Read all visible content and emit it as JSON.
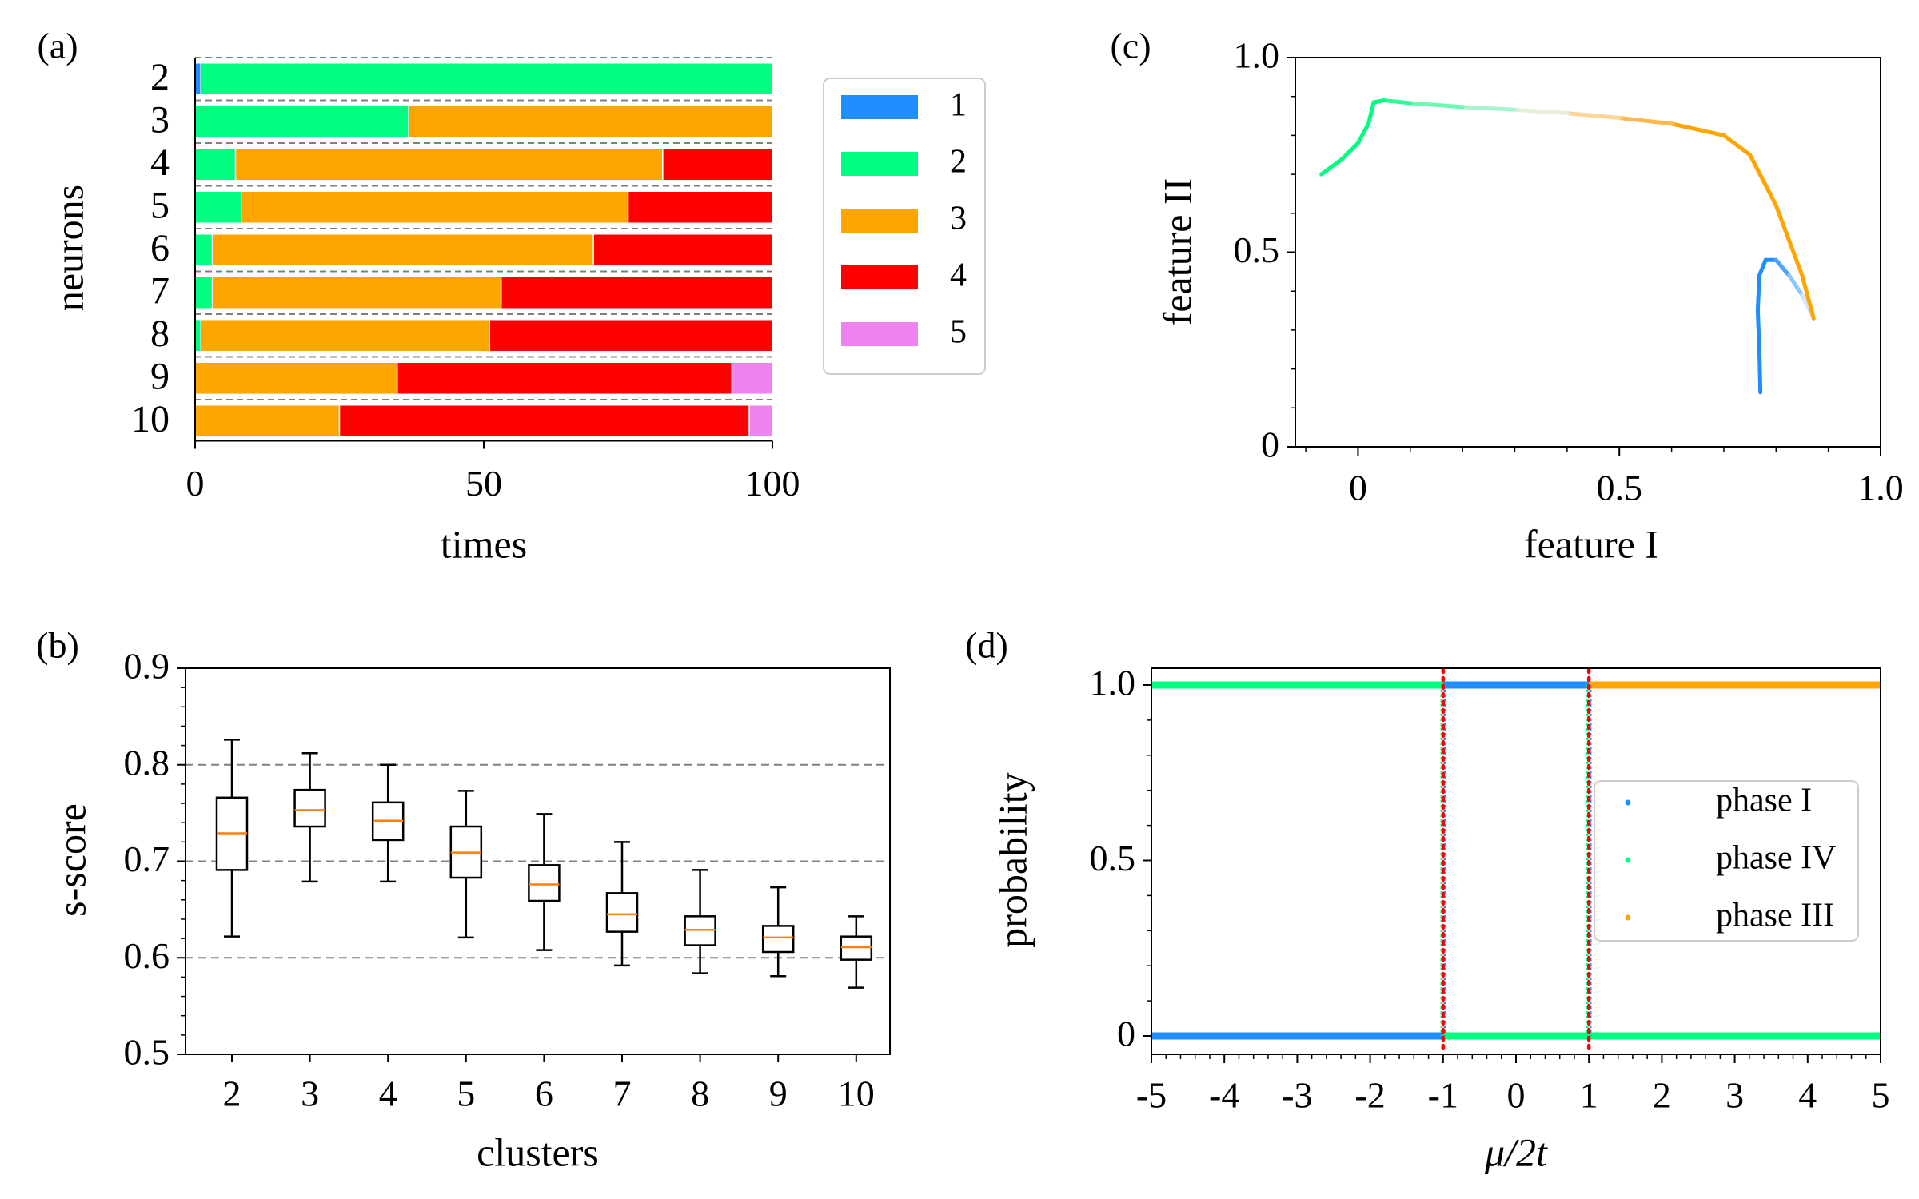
{
  "chart_data": [
    {
      "panel": "(a)",
      "type": "bar",
      "orientation": "horizontal-stacked",
      "xlabel": "times",
      "ylabel": "neurons",
      "xlim": [
        0,
        100
      ],
      "xticks": [
        0,
        50,
        100
      ],
      "categories": [
        "2",
        "3",
        "4",
        "5",
        "6",
        "7",
        "8",
        "9",
        "10"
      ],
      "series": [
        {
          "name": "1",
          "color": "#1f8fff",
          "values": [
            1,
            0,
            0,
            0,
            0,
            0,
            0,
            0,
            0
          ]
        },
        {
          "name": "2",
          "color": "#00ff80",
          "values": [
            99,
            37,
            7,
            8,
            3,
            3,
            1,
            0,
            0
          ]
        },
        {
          "name": "3",
          "color": "#ffa500",
          "values": [
            0,
            63,
            74,
            67,
            66,
            50,
            50,
            35,
            25
          ]
        },
        {
          "name": "4",
          "color": "#ff0000",
          "values": [
            0,
            0,
            19,
            25,
            31,
            47,
            49,
            58,
            71
          ]
        },
        {
          "name": "5",
          "color": "#ee82ee",
          "values": [
            0,
            0,
            0,
            0,
            0,
            0,
            0,
            7,
            4
          ]
        }
      ],
      "legend": "right"
    },
    {
      "panel": "(b)",
      "type": "box",
      "xlabel": "clusters",
      "ylabel": "s-score",
      "ylim": [
        0.5,
        0.9
      ],
      "yticks": [
        "0.5",
        "0.6",
        "0.7",
        "0.8",
        "0.9"
      ],
      "grid_lines": [
        0.6,
        0.7,
        0.8
      ],
      "categories": [
        "2",
        "3",
        "4",
        "5",
        "6",
        "7",
        "8",
        "9",
        "10"
      ],
      "boxes": [
        {
          "whislo": 0.622,
          "q1": 0.691,
          "med": 0.729,
          "q3": 0.766,
          "whishi": 0.826
        },
        {
          "whislo": 0.679,
          "q1": 0.736,
          "med": 0.753,
          "q3": 0.774,
          "whishi": 0.812
        },
        {
          "whislo": 0.679,
          "q1": 0.722,
          "med": 0.742,
          "q3": 0.761,
          "whishi": 0.8
        },
        {
          "whislo": 0.621,
          "q1": 0.683,
          "med": 0.709,
          "q3": 0.736,
          "whishi": 0.773
        },
        {
          "whislo": 0.608,
          "q1": 0.659,
          "med": 0.676,
          "q3": 0.696,
          "whishi": 0.749
        },
        {
          "whislo": 0.592,
          "q1": 0.627,
          "med": 0.645,
          "q3": 0.667,
          "whishi": 0.72
        },
        {
          "whislo": 0.584,
          "q1": 0.613,
          "med": 0.629,
          "q3": 0.643,
          "whishi": 0.691
        },
        {
          "whislo": 0.581,
          "q1": 0.606,
          "med": 0.621,
          "q3": 0.633,
          "whishi": 0.673
        },
        {
          "whislo": 0.569,
          "q1": 0.598,
          "med": 0.611,
          "q3": 0.622,
          "whishi": 0.643
        }
      ],
      "median_color": "#ff7f0e"
    },
    {
      "panel": "(c)",
      "type": "line",
      "xlabel": "feature I",
      "ylabel": "feature II",
      "xlim": [
        -0.12,
        1.0
      ],
      "ylim": [
        0,
        1.0
      ],
      "xticks": [
        "0",
        "0.5",
        "1.0"
      ],
      "yticks": [
        "0",
        "0.5",
        "1.0"
      ],
      "x": [
        0.77,
        0.768,
        0.765,
        0.768,
        0.78,
        0.8,
        0.825,
        0.85,
        0.872,
        0.85,
        0.8,
        0.75,
        0.7,
        0.6,
        0.5,
        0.4,
        0.3,
        0.2,
        0.1,
        0.05,
        0.03,
        0.02,
        0.0,
        -0.03,
        -0.07
      ],
      "y": [
        0.14,
        0.25,
        0.35,
        0.44,
        0.48,
        0.48,
        0.44,
        0.39,
        0.33,
        0.44,
        0.62,
        0.75,
        0.8,
        0.83,
        0.845,
        0.857,
        0.866,
        0.873,
        0.883,
        0.89,
        0.885,
        0.83,
        0.78,
        0.74,
        0.7
      ],
      "colors": [
        "#1f8fff",
        "#1f8fff",
        "#1f8fff",
        "#1f8fff",
        "#1f8fff",
        "#4aa4ff",
        "#8cc6ff",
        "#d0e6ff",
        "#ffa500",
        "#ffa500",
        "#ffa500",
        "#ffa500",
        "#ffa500",
        "#ffb84d",
        "#ffd699",
        "#e6f0d8",
        "#a8f5cf",
        "#6ef7b2",
        "#2efb94",
        "#00ff80",
        "#00ff80",
        "#00ff80",
        "#00ff80",
        "#00ff80",
        "#00ff80"
      ]
    },
    {
      "panel": "(d)",
      "type": "scatter",
      "xlabel": "μ/2t",
      "ylabel": "probability",
      "xlim": [
        -5,
        5
      ],
      "ylim": [
        0,
        1.0
      ],
      "xticks": [
        "-5",
        "-4",
        "-3",
        "-2",
        "-1",
        "0",
        "1",
        "2",
        "3",
        "4",
        "5"
      ],
      "yticks": [
        "0",
        "0.5",
        "1.0"
      ],
      "series": [
        {
          "name": "phase I",
          "color": "#1f8fff",
          "segments": [
            {
              "x": [
                -5,
                -1
              ],
              "y": 0
            },
            {
              "x": [
                -1,
                1
              ],
              "y": 1
            },
            {
              "x": [
                1,
                5
              ],
              "y": 0
            }
          ]
        },
        {
          "name": "phase IV",
          "color": "#00ff80",
          "segments": [
            {
              "x": [
                -5,
                -1
              ],
              "y": 1
            },
            {
              "x": [
                -1,
                1
              ],
              "y": 0
            },
            {
              "x": [
                1,
                5
              ],
              "y": 0
            }
          ]
        },
        {
          "name": "phase III",
          "color": "#ffa500",
          "segments": [
            {
              "x": [
                -5,
                -1
              ],
              "y": 0
            },
            {
              "x": [
                -1,
                1
              ],
              "y": 0
            },
            {
              "x": [
                1,
                5
              ],
              "y": 1
            }
          ]
        }
      ],
      "transitions": [
        -1,
        1
      ],
      "transition_color": "#ff0000",
      "legend": "center-right"
    }
  ],
  "panel_labels": [
    "(a)",
    "(b)",
    "(c)",
    "(d)"
  ]
}
